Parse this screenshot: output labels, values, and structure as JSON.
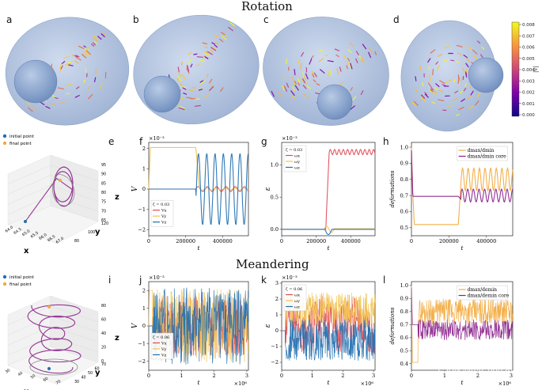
{
  "sections": {
    "rotation": "Rotation",
    "meandering": "Meandering"
  },
  "panel_labels": {
    "a": "a",
    "b": "b",
    "c": "c",
    "d": "d",
    "e": "e",
    "f": "f",
    "g": "g",
    "h": "h",
    "i": "i",
    "j": "j",
    "k": "k",
    "l": "l"
  },
  "colorbar": {
    "label": "|v|",
    "ticks": [
      "0.008",
      "0.007",
      "0.006",
      "0.005",
      "0.004",
      "0.003",
      "0.002",
      "0.001",
      "0.000"
    ],
    "range": [
      0.0,
      0.008
    ]
  },
  "colors": {
    "blob": "#a9bbd8",
    "blob_edge": "#8ea3c6",
    "hole": "#7f9cc7",
    "red": "#e04a57",
    "yellow": "#f2c14e",
    "blue": "#1f6fb0",
    "orange": "#f2a93b",
    "purple": "#8a1f8a",
    "green": "#2ca02c",
    "teal": "#2a9d9a"
  },
  "panel_e": {
    "legend": [
      "initial point",
      "final point"
    ],
    "axis_names": {
      "x": "x",
      "y": "y",
      "z": "z"
    },
    "x_ticks": [
      "64.0",
      "64.5",
      "65.0",
      "65.5",
      "66.0",
      "66.5",
      "67.0"
    ],
    "y_ticks": [
      "80",
      "100",
      "120"
    ],
    "z_ticks": [
      "95",
      "90",
      "85",
      "80",
      "75",
      "70",
      "65"
    ]
  },
  "panel_i": {
    "legend": [
      "initial point",
      "final point"
    ],
    "axis_names": {
      "x": "x",
      "y": "y",
      "z": "z"
    },
    "x_ticks": [
      "30",
      "40",
      "50",
      "60",
      "70"
    ],
    "y_ticks": [
      "30",
      "40",
      "50",
      "60",
      "70"
    ],
    "z_ticks": [
      "80",
      "60",
      "40",
      "20",
      "0"
    ]
  },
  "chart_data": [
    {
      "id": "f",
      "type": "line",
      "ylabel": "V",
      "xlabel": "t",
      "exponent": "×10⁻³",
      "xlim": [
        0,
        540000
      ],
      "ylim": [
        -2.3,
        2.3
      ],
      "x_ticks": [
        0,
        200000,
        400000
      ],
      "x_tick_labels": [
        "0",
        "200000",
        "400000"
      ],
      "y_ticks": [
        -2,
        -1,
        0,
        1,
        2
      ],
      "y_tick_labels": [
        "−2",
        "−1",
        "0",
        "1",
        "2"
      ],
      "legend_title": "ζ = 0.03",
      "series": [
        {
          "name": "Vx",
          "color": "#e04a57",
          "kind": "fz"
        },
        {
          "name": "Vy",
          "color": "#f2c14e",
          "kind": "fy"
        },
        {
          "name": "Vz",
          "color": "#1f6fb0",
          "kind": "fb"
        }
      ]
    },
    {
      "id": "g",
      "type": "line",
      "ylabel": "ε",
      "xlabel": "t",
      "exponent": "×10⁻³",
      "xlim": [
        0,
        540000
      ],
      "ylim": [
        -0.1,
        1.35
      ],
      "x_ticks": [
        0,
        200000,
        400000
      ],
      "x_tick_labels": [
        "0",
        "200000",
        "400000"
      ],
      "y_ticks": [
        0.0,
        0.5,
        1.0
      ],
      "y_tick_labels": [
        "0.0",
        "0.5",
        "1.0"
      ],
      "legend_title": "ζ = 0.03",
      "series": [
        {
          "name": "ωx",
          "color": "#e04a57",
          "kind": "gr"
        },
        {
          "name": "ωy",
          "color": "#f2c14e",
          "kind": "gy"
        },
        {
          "name": "ωz",
          "color": "#1f6fb0",
          "kind": "gb"
        }
      ]
    },
    {
      "id": "h",
      "type": "line",
      "ylabel": "deformations",
      "xlabel": "t",
      "xlim": [
        0,
        540000
      ],
      "ylim": [
        0.45,
        1.03
      ],
      "x_ticks": [
        0,
        200000,
        400000
      ],
      "x_tick_labels": [
        "0",
        "200000",
        "400000"
      ],
      "y_ticks": [
        0.5,
        0.6,
        0.7,
        0.8,
        0.9,
        1.0
      ],
      "y_tick_labels": [
        "0.5",
        "0.6",
        "0.7",
        "0.8",
        "0.9",
        "1.0"
      ],
      "series": [
        {
          "name": "dmax/dmin",
          "color": "#f2a93b",
          "kind": "ho"
        },
        {
          "name": "dmax/dmin core",
          "color": "#8a1f8a",
          "kind": "hp"
        }
      ]
    },
    {
      "id": "j",
      "type": "line",
      "ylabel": "V",
      "xlabel": "t",
      "exponent": "×10⁻³",
      "x_exponent": "×10⁶",
      "xlim": [
        0,
        3.05
      ],
      "ylim": [
        -2.5,
        2.5
      ],
      "x_ticks": [
        0,
        1,
        2,
        3
      ],
      "x_tick_labels": [
        "0",
        "1",
        "2",
        "3"
      ],
      "y_ticks": [
        -2,
        -1,
        0,
        1,
        2
      ],
      "y_tick_labels": [
        "−2",
        "−1",
        "0",
        "1",
        "2"
      ],
      "legend_title": "ζ = 0.06",
      "series": [
        {
          "name": "Vx",
          "color": "#e04a57",
          "kind": "jr"
        },
        {
          "name": "Vy",
          "color": "#f2c14e",
          "kind": "jy"
        },
        {
          "name": "Vz",
          "color": "#1f6fb0",
          "kind": "jb"
        }
      ]
    },
    {
      "id": "k",
      "type": "line",
      "ylabel": "ε",
      "xlabel": "t",
      "exponent": "×10⁻³",
      "x_exponent": "×10⁶",
      "xlim": [
        0,
        3.05
      ],
      "ylim": [
        -2.5,
        3.1
      ],
      "x_ticks": [
        0,
        1,
        2,
        3
      ],
      "x_tick_labels": [
        "0",
        "1",
        "2",
        "3"
      ],
      "y_ticks": [
        -2,
        -1,
        0,
        1,
        2,
        3
      ],
      "y_tick_labels": [
        "−2",
        "−1",
        "0",
        "1",
        "2",
        "3"
      ],
      "legend_title": "ζ = 0.06",
      "series": [
        {
          "name": "ωx",
          "color": "#e04a57",
          "kind": "kr"
        },
        {
          "name": "ωy",
          "color": "#f2c14e",
          "kind": "ky"
        },
        {
          "name": "ωz",
          "color": "#1f6fb0",
          "kind": "kb"
        }
      ]
    },
    {
      "id": "l",
      "type": "line",
      "ylabel": "deformations",
      "xlabel": "t",
      "x_exponent": "×10⁶",
      "xlim": [
        0,
        3.05
      ],
      "ylim": [
        0.35,
        1.03
      ],
      "x_ticks": [
        0,
        1,
        2,
        3
      ],
      "x_tick_labels": [
        "0",
        "1",
        "2",
        "3"
      ],
      "y_ticks": [
        0.4,
        0.5,
        0.6,
        0.7,
        0.8,
        0.9,
        1.0
      ],
      "y_tick_labels": [
        "0.4",
        "0.5",
        "0.6",
        "0.7",
        "0.8",
        "0.9",
        "1.0"
      ],
      "series": [
        {
          "name": "dmax/demin",
          "color": "#f2a93b",
          "kind": "lo"
        },
        {
          "name": "dmax/demin core",
          "color": "#8a1f8a",
          "kind": "lp"
        }
      ]
    }
  ],
  "watermark": "CSDN @m0_68896128"
}
